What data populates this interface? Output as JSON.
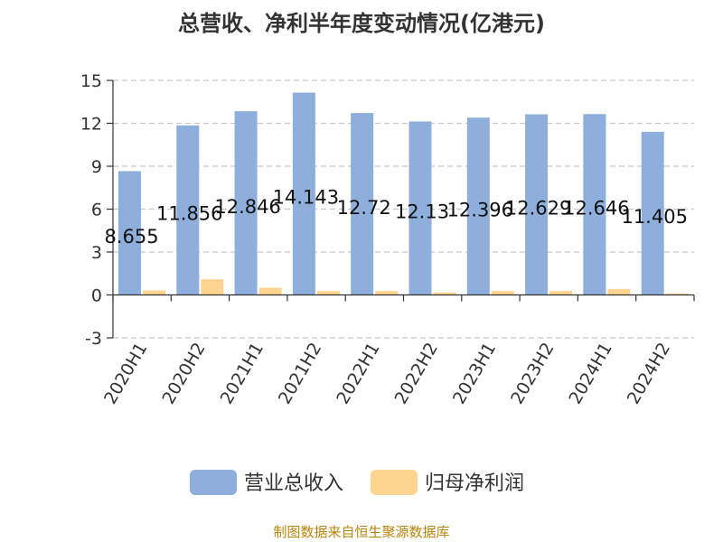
{
  "chart_data": {
    "type": "bar",
    "title": "总营收、净利半年度变动情况(亿港元)",
    "categories": [
      "2020H1",
      "2020H2",
      "2021H1",
      "2021H2",
      "2022H1",
      "2022H2",
      "2023H1",
      "2023H2",
      "2024H1",
      "2024H2"
    ],
    "series": [
      {
        "name": "营业总收入",
        "color": "#8eaedb",
        "values": [
          8.655,
          11.856,
          12.846,
          14.143,
          12.72,
          12.13,
          12.396,
          12.629,
          12.646,
          11.405
        ],
        "labels": [
          "8.655",
          "11.856",
          "12.846",
          "14.143",
          "12.72",
          "12.13",
          "12.396",
          "12.629",
          "12.646",
          "11.405"
        ]
      },
      {
        "name": "归母净利润",
        "color": "#fdd590",
        "values": [
          0.32,
          1.1,
          0.5,
          0.28,
          0.28,
          0.18,
          0.28,
          0.28,
          0.42,
          0.1
        ]
      }
    ],
    "ylim": [
      -3,
      15
    ],
    "yticks": [
      "-3",
      "0",
      "3",
      "6",
      "9",
      "12",
      "15"
    ],
    "grid": true,
    "legend": "bottom"
  },
  "source": "制图数据来自恒生聚源数据库"
}
